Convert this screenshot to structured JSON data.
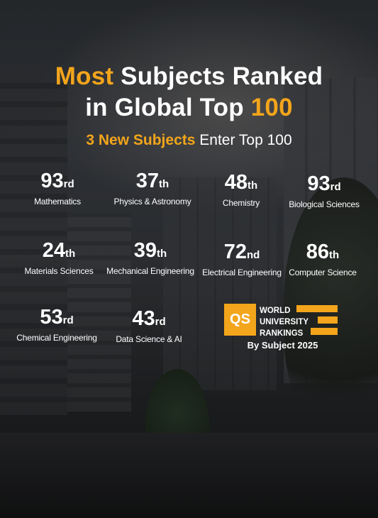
{
  "headline": {
    "line1_accent": "Most",
    "line1_rest": " Subjects Ranked",
    "line2_rest": "in Global Top ",
    "line2_accent": "100"
  },
  "subheadline": {
    "accent": "3 New  Subjects",
    "rest": " Enter Top 100"
  },
  "rankings": [
    {
      "rank": "93",
      "suffix": "rd",
      "subject": "Mathematics"
    },
    {
      "rank": "37",
      "suffix": "th",
      "subject": "Physics & Astronomy"
    },
    {
      "rank": "48",
      "suffix": "th",
      "subject": "Chemistry"
    },
    {
      "rank": "93",
      "suffix": "rd",
      "subject": "Biological Sciences"
    },
    {
      "rank": "24",
      "suffix": "th",
      "subject": "Materials Sciences"
    },
    {
      "rank": "39",
      "suffix": "th",
      "subject": "Mechanical Engineering"
    },
    {
      "rank": "72",
      "suffix": "nd",
      "subject": "Electrical Engineering"
    },
    {
      "rank": "86",
      "suffix": "th",
      "subject": "Computer Science"
    },
    {
      "rank": "53",
      "suffix": "rd",
      "subject": "Chemical Engineering"
    },
    {
      "rank": "43",
      "suffix": "rd",
      "subject": "Data Science & AI"
    }
  ],
  "qs_logo": {
    "mark": "QS",
    "line1": "WORLD",
    "line2": "UNIVERSITY",
    "line3": "RANKINGS",
    "byline": "By Subject 2025"
  },
  "colors": {
    "accent": "#f3a51b",
    "text": "#ffffff",
    "background": "#2b2d30"
  }
}
